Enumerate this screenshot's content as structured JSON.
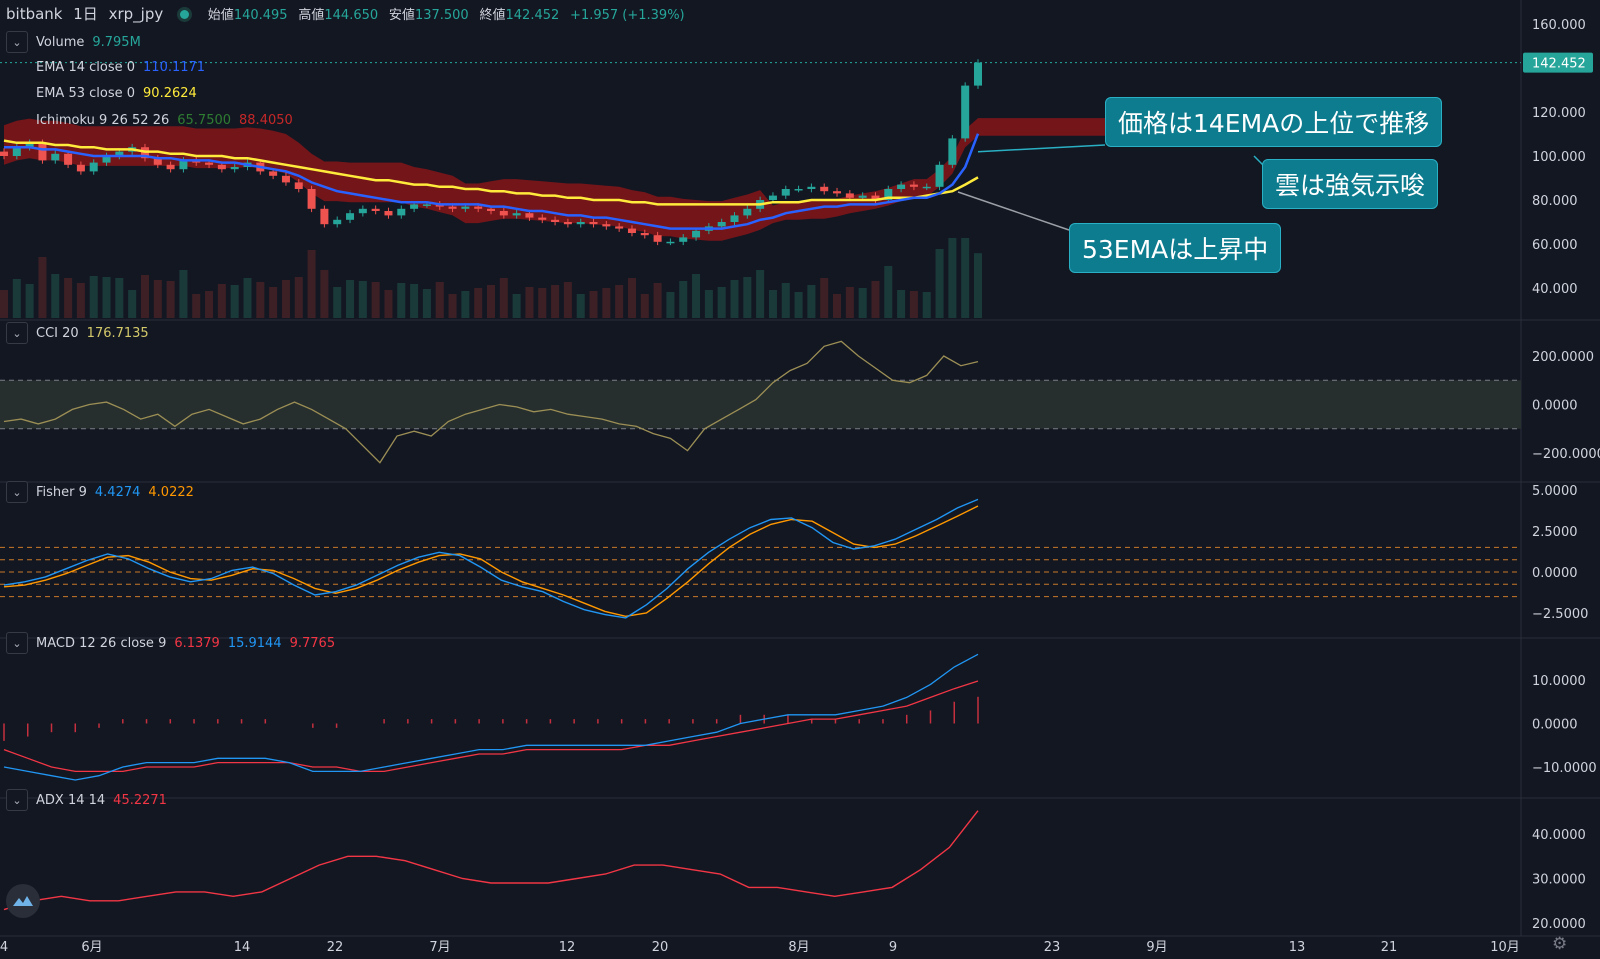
{
  "header": {
    "exchange": "bitbank",
    "interval": "1日",
    "symbol": "xrp_jpy",
    "open_label": "始値",
    "open": "140.495",
    "high_label": "高値",
    "high": "144.650",
    "low_label": "安値",
    "low": "137.500",
    "close_label": "終値",
    "close": "142.452",
    "change": "+1.957 (+1.39%)"
  },
  "legends": {
    "volume": {
      "name": "Volume",
      "value": "9.795M"
    },
    "ema14": {
      "name": "EMA 14 close 0",
      "value": "110.1171"
    },
    "ema53": {
      "name": "EMA 53 close 0",
      "value": "90.2624"
    },
    "ichimoku": {
      "name": "Ichimoku 9 26 52 26",
      "value1": "65.7500",
      "value2": "88.4050"
    },
    "cci": {
      "name": "CCI 20",
      "value": "176.7135"
    },
    "fisher": {
      "name": "Fisher 9",
      "value1": "4.4274",
      "value2": "4.0222"
    },
    "macd": {
      "name": "MACD 12 26 close 9",
      "value1": "6.1379",
      "value2": "15.9144",
      "value3": "9.7765"
    },
    "adx": {
      "name": "ADX 14 14",
      "value": "45.2271"
    }
  },
  "callouts": {
    "ema14": "価格は14EMAの上位で推移",
    "cloud": "雲は強気示唆",
    "ema53": "53EMAは上昇中"
  },
  "price_axis": [
    "160.000",
    "142.452",
    "120.000",
    "100.000",
    "80.000",
    "60.000",
    "40.000"
  ],
  "cci_axis": [
    "200.0000",
    "0.0000",
    "−200.0000"
  ],
  "fisher_axis": [
    "5.0000",
    "2.5000",
    "0.0000",
    "−2.5000"
  ],
  "macd_axis": [
    "10.0000",
    "0.0000",
    "−10.0000"
  ],
  "adx_axis": [
    "40.0000",
    "30.0000",
    "20.0000"
  ],
  "time_axis": [
    "4",
    "6月",
    "14",
    "22",
    "7月",
    "12",
    "20",
    "8月",
    "9",
    "23",
    "9月",
    "13",
    "21",
    "10月"
  ],
  "colors": {
    "up": "#26a69a",
    "down": "#ef5350",
    "ema14": "#2962ff",
    "ema53": "#ffeb3b",
    "cloud_bear": "#7f1519",
    "cloud_bull": "#1b5e20",
    "cci": "#9c8f55",
    "fisher1": "#2196f3",
    "fisher2": "#ff9800",
    "macd": "#2196f3",
    "signal": "#f23645",
    "adx": "#f23645",
    "callout": "#0e7c8f"
  },
  "chart_data": [
    {
      "type": "line",
      "title": "bitbank 1日 xrp_jpy",
      "ylim": [
        30,
        165
      ],
      "x": [
        "5/31",
        "6/1",
        "6/2",
        "6/3",
        "6/4",
        "6/5",
        "6/6",
        "6/7",
        "6/8",
        "6/9",
        "6/10",
        "6/11",
        "6/12",
        "6/13",
        "6/14",
        "6/15",
        "6/16",
        "6/17",
        "6/18",
        "6/19",
        "6/20",
        "6/21",
        "6/22",
        "6/23",
        "6/24",
        "6/25",
        "6/26",
        "6/27",
        "6/28",
        "6/29",
        "6/30",
        "7/1",
        "7/2",
        "7/3",
        "7/4",
        "7/5",
        "7/6",
        "7/7",
        "7/8",
        "7/9",
        "7/10",
        "7/11",
        "7/12",
        "7/13",
        "7/14",
        "7/15",
        "7/16",
        "7/17",
        "7/18",
        "7/19",
        "7/20",
        "7/21",
        "7/22",
        "7/23",
        "7/24",
        "7/25",
        "7/26",
        "7/27",
        "7/28",
        "7/29",
        "7/30",
        "7/31",
        "8/1",
        "8/2",
        "8/3",
        "8/4",
        "8/5",
        "8/6",
        "8/7",
        "8/8",
        "8/9",
        "8/10",
        "8/11",
        "8/12",
        "8/13",
        "8/14",
        "8/15"
      ],
      "series": [
        {
          "name": "close",
          "values": [
            100,
            104,
            106,
            98,
            101,
            96,
            93,
            97,
            100,
            102,
            104,
            99,
            96,
            94,
            98,
            97,
            96,
            94,
            95,
            97,
            93,
            91,
            88,
            85,
            76,
            69,
            71,
            74,
            76,
            75,
            73,
            76,
            78,
            78,
            77,
            76,
            77,
            76,
            75,
            73,
            74,
            72,
            71,
            70,
            69,
            70,
            69,
            68,
            67,
            65,
            64,
            61,
            61,
            63,
            66,
            68,
            70,
            73,
            76,
            80,
            82,
            85,
            85,
            86,
            84,
            83,
            81,
            82,
            80,
            85,
            87,
            86,
            86,
            96,
            108,
            132,
            142.452
          ]
        },
        {
          "name": "EMA 14",
          "values": [
            104,
            104,
            104,
            103,
            103,
            102,
            101,
            100,
            100,
            100,
            100,
            100,
            99,
            99,
            98,
            98,
            98,
            97,
            97,
            96,
            95,
            94,
            93,
            91,
            88,
            86,
            84,
            83,
            82,
            81,
            80,
            79,
            79,
            79,
            78,
            78,
            78,
            78,
            77,
            77,
            76,
            75,
            75,
            74,
            73,
            73,
            72,
            72,
            71,
            70,
            69,
            68,
            67,
            67,
            67,
            67,
            67,
            68,
            69,
            71,
            72,
            74,
            75,
            76,
            77,
            77,
            78,
            78,
            78,
            79,
            80,
            81,
            81,
            83,
            87,
            95,
            110.1171
          ]
        },
        {
          "name": "EMA 53",
          "values": [
            107,
            106,
            106,
            106,
            105,
            105,
            104,
            104,
            103,
            103,
            103,
            102,
            102,
            101,
            101,
            100,
            100,
            100,
            99,
            99,
            98,
            97,
            96,
            95,
            94,
            93,
            92,
            91,
            90,
            89,
            89,
            88,
            87,
            87,
            86,
            86,
            85,
            85,
            84,
            84,
            83,
            83,
            82,
            82,
            81,
            81,
            80,
            80,
            80,
            79,
            79,
            78,
            78,
            78,
            78,
            78,
            78,
            78,
            78,
            78,
            79,
            79,
            79,
            80,
            80,
            80,
            80,
            80,
            80,
            81,
            81,
            81,
            82,
            83,
            84,
            87,
            90.2624
          ]
        }
      ]
    },
    {
      "type": "line",
      "title": "CCI 20",
      "ylim": [
        -300,
        300
      ],
      "series": [
        {
          "name": "CCI 20",
          "values": [
            -70,
            -60,
            -80,
            -60,
            -20,
            0,
            10,
            -20,
            -60,
            -40,
            -90,
            -40,
            -20,
            -50,
            -80,
            -60,
            -20,
            10,
            -20,
            -60,
            -100,
            -170,
            -240,
            -130,
            -110,
            -130,
            -70,
            -40,
            -20,
            0,
            -10,
            -30,
            -20,
            -40,
            -50,
            -60,
            -80,
            -90,
            -120,
            -140,
            -190,
            -100,
            -60,
            -20,
            20,
            90,
            140,
            170,
            240,
            260,
            200,
            150,
            100,
            90,
            120,
            200,
            160,
            176.7135
          ]
        }
      ]
    },
    {
      "type": "line",
      "title": "Fisher 9",
      "ylim": [
        -3.5,
        5.2
      ],
      "series": [
        {
          "name": "Fisher",
          "values": [
            -0.8,
            -0.6,
            -0.3,
            0.2,
            0.7,
            1.1,
            0.8,
            0.2,
            -0.3,
            -0.6,
            -0.4,
            0.1,
            0.3,
            -0.1,
            -0.8,
            -1.4,
            -1.2,
            -0.8,
            -0.2,
            0.4,
            0.9,
            1.2,
            1.0,
            0.3,
            -0.5,
            -0.9,
            -1.2,
            -1.8,
            -2.3,
            -2.6,
            -2.8,
            -2.0,
            -1.0,
            0.2,
            1.2,
            2.0,
            2.7,
            3.2,
            3.3,
            2.7,
            1.8,
            1.4,
            1.6,
            2.0,
            2.6,
            3.2,
            3.9,
            4.4274
          ]
        },
        {
          "name": "Trigger",
          "values": [
            -0.9,
            -0.8,
            -0.5,
            -0.1,
            0.4,
            0.9,
            1.0,
            0.6,
            0.0,
            -0.4,
            -0.5,
            -0.2,
            0.2,
            0.1,
            -0.4,
            -1.0,
            -1.3,
            -1.0,
            -0.5,
            0.1,
            0.6,
            1.0,
            1.1,
            0.8,
            0.0,
            -0.6,
            -1.0,
            -1.4,
            -1.9,
            -2.4,
            -2.7,
            -2.5,
            -1.6,
            -0.6,
            0.5,
            1.5,
            2.3,
            2.9,
            3.2,
            3.1,
            2.4,
            1.7,
            1.5,
            1.7,
            2.2,
            2.8,
            3.4,
            4.0222
          ]
        }
      ]
    },
    {
      "type": "line",
      "title": "MACD 12 26 close 9",
      "ylim": [
        -15,
        20
      ],
      "series": [
        {
          "name": "MACD",
          "values": [
            -10,
            -11,
            -12,
            -13,
            -12,
            -10,
            -9,
            -9,
            -9,
            -8,
            -8,
            -8,
            -9,
            -11,
            -11,
            -11,
            -10,
            -9,
            -8,
            -7,
            -6,
            -6,
            -5,
            -5,
            -5,
            -5,
            -5,
            -5,
            -4,
            -3,
            -2,
            0,
            1,
            2,
            2,
            2,
            3,
            4,
            6,
            9,
            13,
            15.9144
          ]
        },
        {
          "name": "Signal",
          "values": [
            -6,
            -8,
            -10,
            -11,
            -11,
            -11,
            -10,
            -10,
            -10,
            -9,
            -9,
            -9,
            -9,
            -10,
            -10,
            -11,
            -11,
            -10,
            -9,
            -8,
            -7,
            -7,
            -6,
            -6,
            -6,
            -6,
            -6,
            -5,
            -5,
            -4,
            -3,
            -2,
            -1,
            0,
            1,
            1,
            2,
            3,
            4,
            6,
            8,
            9.7765
          ]
        },
        {
          "name": "Histogram",
          "values": [
            -4,
            -3,
            -2,
            -2,
            -1,
            1,
            1,
            1,
            1,
            1,
            1,
            1,
            0,
            -1,
            -1,
            0,
            1,
            1,
            1,
            1,
            1,
            1,
            1,
            1,
            1,
            1,
            1,
            1,
            1,
            1,
            1,
            2,
            2,
            2,
            1,
            1,
            1,
            1,
            2,
            3,
            5,
            6.1379
          ]
        }
      ]
    },
    {
      "type": "line",
      "title": "ADX 14 14",
      "ylim": [
        18,
        48
      ],
      "series": [
        {
          "name": "ADX",
          "values": [
            23,
            25,
            26,
            25,
            25,
            26,
            27,
            27,
            26,
            27,
            30,
            33,
            35,
            35,
            34,
            32,
            30,
            29,
            29,
            29,
            30,
            31,
            33,
            33,
            32,
            31,
            28,
            28,
            27,
            26,
            27,
            28,
            32,
            37,
            45.2271
          ]
        }
      ]
    }
  ]
}
